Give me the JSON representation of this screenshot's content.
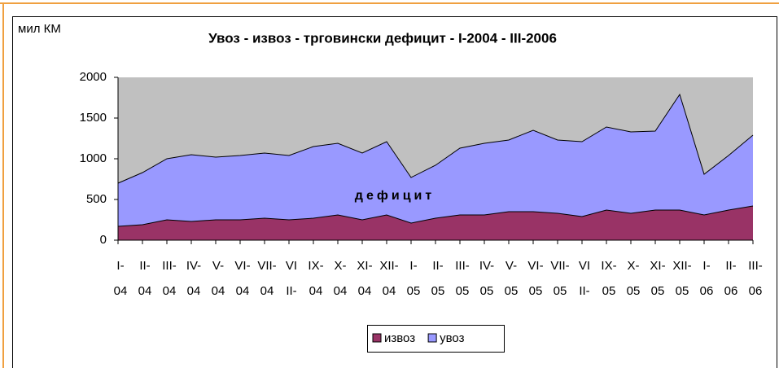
{
  "chart_data": {
    "type": "area",
    "title": "Увоз - извоз - трговински дефицит - I-2004 - III-2006",
    "y_label": "мил КМ",
    "annotation": "дефицит",
    "categories": [
      [
        "I-",
        "04"
      ],
      [
        "II-",
        "04"
      ],
      [
        "III-",
        "04"
      ],
      [
        "IV-",
        "04"
      ],
      [
        "V-",
        "04"
      ],
      [
        "VI-",
        "04"
      ],
      [
        "VII-",
        "04"
      ],
      [
        "VI",
        "II-"
      ],
      [
        "IX-",
        "04"
      ],
      [
        "X-",
        "04"
      ],
      [
        "XI-",
        "04"
      ],
      [
        "XII-",
        "04"
      ],
      [
        "I-",
        "05"
      ],
      [
        "II-",
        "05"
      ],
      [
        "III-",
        "05"
      ],
      [
        "IV-",
        "05"
      ],
      [
        "V-",
        "05"
      ],
      [
        "VI-",
        "05"
      ],
      [
        "VII-",
        "05"
      ],
      [
        "VI",
        "II-"
      ],
      [
        "IX-",
        "05"
      ],
      [
        "X-",
        "05"
      ],
      [
        "XI-",
        "05"
      ],
      [
        "XII-",
        "05"
      ],
      [
        "I-",
        "06"
      ],
      [
        "II-",
        "06"
      ],
      [
        "III-",
        "06"
      ]
    ],
    "series": [
      {
        "name": "извоз",
        "color": "#993366",
        "values": [
          170,
          190,
          250,
          230,
          250,
          250,
          270,
          250,
          270,
          310,
          250,
          310,
          210,
          270,
          310,
          310,
          350,
          350,
          330,
          290,
          370,
          330,
          370,
          370,
          310,
          370,
          420
        ]
      },
      {
        "name": "увоз",
        "color": "#9999ff",
        "values": [
          700,
          830,
          1000,
          1050,
          1020,
          1040,
          1070,
          1040,
          1150,
          1190,
          1070,
          1210,
          770,
          920,
          1130,
          1190,
          1230,
          1350,
          1230,
          1210,
          1390,
          1330,
          1340,
          1790,
          810,
          1040,
          1290
        ]
      }
    ],
    "ylim": [
      0,
      2000
    ],
    "yticks": [
      0,
      500,
      1000,
      1500,
      2000
    ],
    "plot_background": "#c0c0c0"
  }
}
